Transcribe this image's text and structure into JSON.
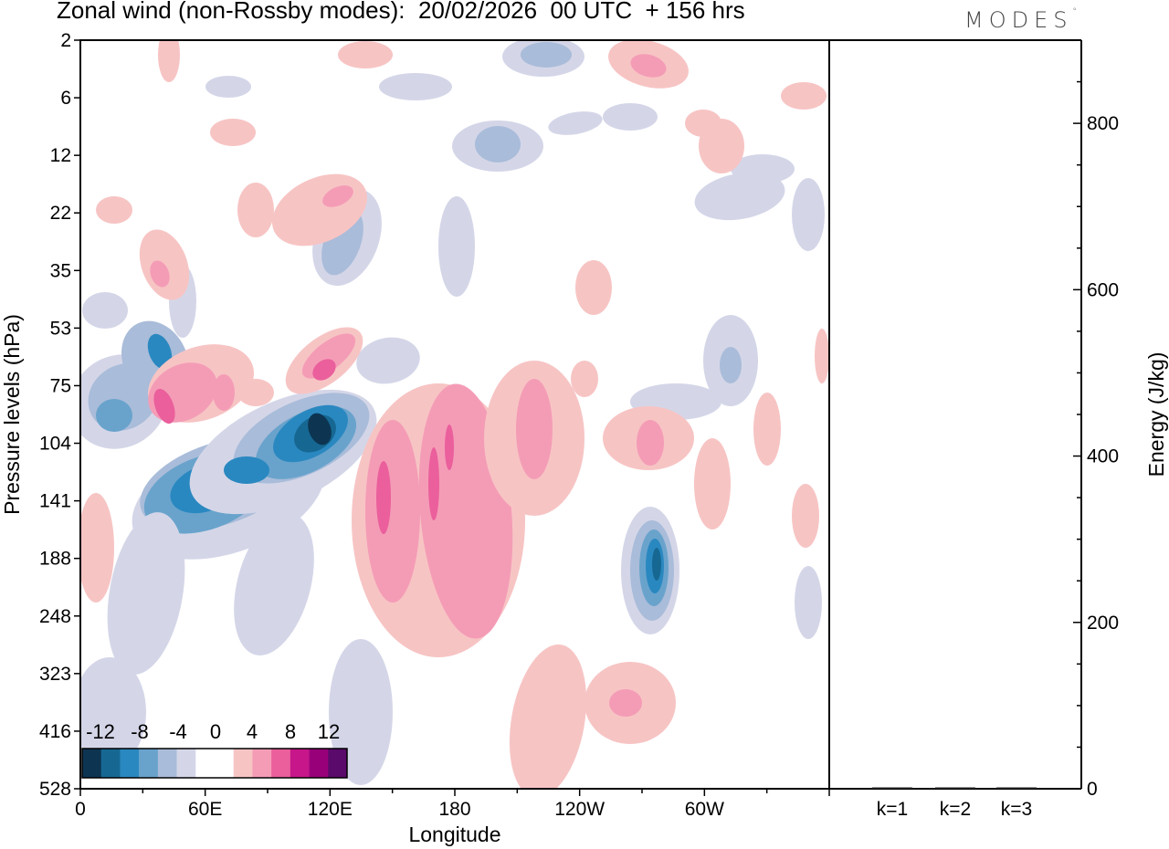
{
  "header": {
    "title": "Zonal wind (non-Rossby modes):  20/02/2026  00 UTC  + 156 hrs",
    "logo": "MODES",
    "logo_mark": "°"
  },
  "colors": {
    "neg": [
      "#0d3552",
      "#166893",
      "#2a88c0",
      "#69a3cc",
      "#a9bcd9",
      "#d4d6e8"
    ],
    "pos": [
      "#f7c4c4",
      "#f49cb6",
      "#ea5f9c",
      "#c6168a",
      "#98007a",
      "#5a0a6b"
    ],
    "frame": "#000000"
  },
  "chart_data": [
    {
      "type": "heatmap",
      "title": "Zonal wind (non-Rossby modes)",
      "xlabel": "Longitude",
      "ylabel": "Pressure levels (hPa)",
      "x_ticks": [
        "0",
        "60E",
        "120E",
        "180",
        "120W",
        "60W"
      ],
      "x_tick_degrees": [
        0,
        60,
        120,
        180,
        240,
        300
      ],
      "x_range_degrees": [
        0,
        360
      ],
      "y_ticks": [
        "2",
        "6",
        "12",
        "22",
        "35",
        "53",
        "75",
        "104",
        "141",
        "188",
        "248",
        "323",
        "416",
        "528"
      ],
      "colorbar_labels": [
        "-12",
        "-8",
        "-4",
        "0",
        "4",
        "8",
        "12"
      ],
      "colorbar_levels": [
        -14,
        -12,
        -10,
        -8,
        -6,
        -4,
        -2,
        2,
        4,
        6,
        8,
        10,
        12,
        14
      ],
      "features": [
        {
          "name": "negative band",
          "lon": [
            5,
            125
          ],
          "level": "75-188",
          "min_value": -14
        },
        {
          "name": "negative core",
          "lon": [
            35,
            45
          ],
          "level": "53-75",
          "min_value": -10
        },
        {
          "name": "positive region",
          "lon": [
            140,
            215
          ],
          "level": "104-323",
          "max_value": 8
        },
        {
          "name": "negative cell",
          "lon": [
            270,
            285
          ],
          "level": "141-248",
          "min_value": -10
        },
        {
          "name": "positive band",
          "lon": [
            90,
            140
          ],
          "level": "53-104",
          "max_value": 8
        }
      ]
    },
    {
      "type": "bar",
      "ylabel": "Energy (J/kg)",
      "categories": [
        "k=1",
        "k=2",
        "k=3"
      ],
      "values": [
        1.5,
        1.0,
        0.8
      ],
      "ylim": [
        0,
        900
      ],
      "y_ticks": [
        "0",
        "200",
        "400",
        "600",
        "800"
      ]
    }
  ]
}
